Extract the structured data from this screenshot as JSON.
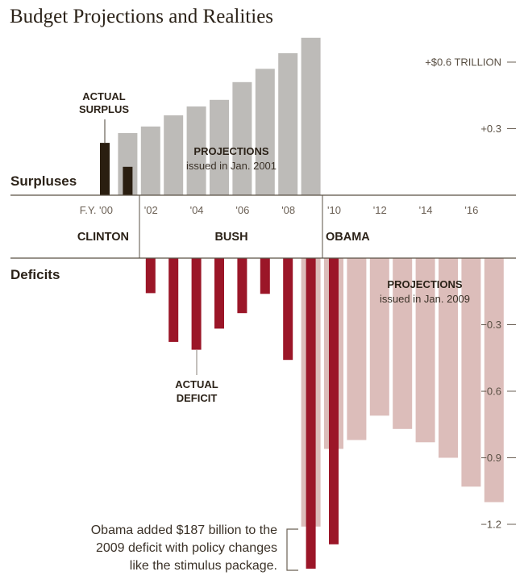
{
  "chart_data": {
    "type": "bar",
    "title": "Budget Projections and Realities",
    "unit": "trillions of dollars",
    "section_labels": {
      "surplus": "Surpluses",
      "deficit": "Deficits"
    },
    "x_axis": {
      "years": [
        2000,
        2001,
        2002,
        2003,
        2004,
        2005,
        2006,
        2007,
        2008,
        2009,
        2010,
        2011,
        2012,
        2013,
        2014,
        2015,
        2016,
        2017
      ],
      "tick_labels": [
        {
          "year": 2000,
          "label": "F.Y. '00"
        },
        {
          "year": 2002,
          "label": "'02"
        },
        {
          "year": 2004,
          "label": "'04"
        },
        {
          "year": 2006,
          "label": "'06"
        },
        {
          "year": 2008,
          "label": "'08"
        },
        {
          "year": 2010,
          "label": "'10"
        },
        {
          "year": 2012,
          "label": "'12"
        },
        {
          "year": 2014,
          "label": "'14"
        },
        {
          "year": 2016,
          "label": "'16"
        }
      ]
    },
    "y_axis": {
      "range": [
        -1.45,
        0.72
      ],
      "ticks": [
        {
          "value": 0.6,
          "label": "+$0.6 TRILLION"
        },
        {
          "value": 0.3,
          "label": "+0.3"
        },
        {
          "value": -0.3,
          "label": "−0.3"
        },
        {
          "value": -0.6,
          "label": "−0.6"
        },
        {
          "value": -0.9,
          "label": "−0.9"
        },
        {
          "value": -1.2,
          "label": "−1.2"
        }
      ]
    },
    "presidencies": [
      {
        "name": "CLINTON",
        "from": 2000,
        "to": 2001
      },
      {
        "name": "BUSH",
        "from": 2002,
        "to": 2009
      },
      {
        "name": "OBAMA",
        "from": 2010,
        "to": 2017
      }
    ],
    "series": [
      {
        "name": "Projections issued in Jan. 2001",
        "color": "#bdbbb8",
        "points": [
          {
            "year": 2001,
            "value": 0.28
          },
          {
            "year": 2002,
            "value": 0.31
          },
          {
            "year": 2003,
            "value": 0.36
          },
          {
            "year": 2004,
            "value": 0.4
          },
          {
            "year": 2005,
            "value": 0.43
          },
          {
            "year": 2006,
            "value": 0.51
          },
          {
            "year": 2007,
            "value": 0.57
          },
          {
            "year": 2008,
            "value": 0.64
          },
          {
            "year": 2009,
            "value": 0.71
          }
        ]
      },
      {
        "name": "Projections issued in Jan. 2009",
        "color": "#dcbdba",
        "points": [
          {
            "year": 2009,
            "value": -1.21
          },
          {
            "year": 2010,
            "value": -0.86
          },
          {
            "year": 2011,
            "value": -0.82
          },
          {
            "year": 2012,
            "value": -0.71
          },
          {
            "year": 2013,
            "value": -0.77
          },
          {
            "year": 2014,
            "value": -0.83
          },
          {
            "year": 2015,
            "value": -0.9
          },
          {
            "year": 2016,
            "value": -1.03
          },
          {
            "year": 2017,
            "value": -1.1
          }
        ]
      },
      {
        "name": "Actual surplus",
        "color": "#2a1e10",
        "points": [
          {
            "year": 2000,
            "value": 0.236
          },
          {
            "year": 2001,
            "value": 0.128
          }
        ]
      },
      {
        "name": "Actual deficit",
        "color": "#9b1628",
        "points": [
          {
            "year": 2002,
            "value": -0.158
          },
          {
            "year": 2003,
            "value": -0.378
          },
          {
            "year": 2004,
            "value": -0.413
          },
          {
            "year": 2005,
            "value": -0.318
          },
          {
            "year": 2006,
            "value": -0.248
          },
          {
            "year": 2007,
            "value": -0.161
          },
          {
            "year": 2008,
            "value": -0.459
          },
          {
            "year": 2009,
            "value": -1.4
          },
          {
            "year": 2010,
            "value": -1.29
          }
        ]
      }
    ],
    "annotations": {
      "actual_surplus": [
        "ACTUAL",
        "SURPLUS"
      ],
      "actual_deficit": [
        "ACTUAL",
        "DEFICIT"
      ],
      "proj_2001": {
        "title": "PROJECTIONS",
        "subtitle": "issued in Jan. 2001"
      },
      "proj_2009": {
        "title": "PROJECTIONS",
        "subtitle": "issued in Jan. 2009"
      },
      "note": [
        "Obama added $187 billion to the",
        "2009 deficit with policy changes",
        "like the stimulus package."
      ]
    },
    "legend": "none",
    "grid": false
  }
}
